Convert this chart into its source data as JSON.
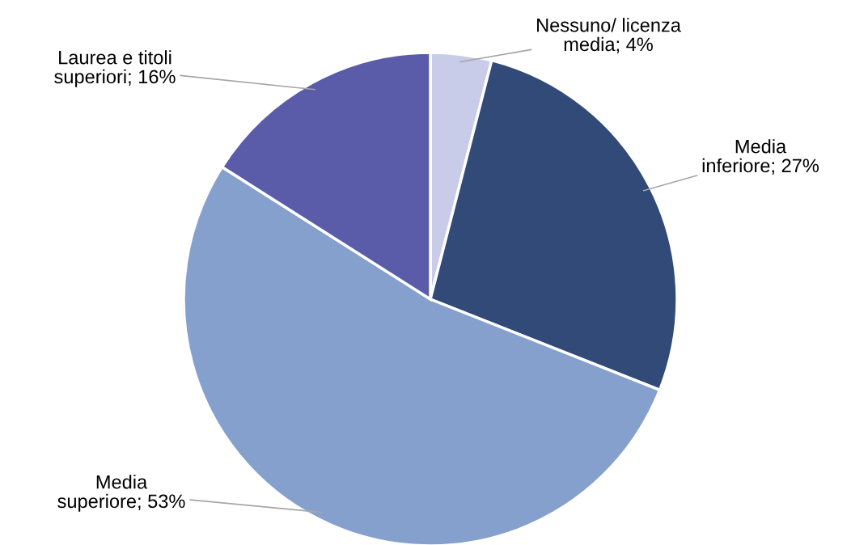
{
  "chart_data": {
    "type": "pie",
    "categories": [
      "Nessuno/ licenza\nmedia",
      "Media\ninferiore",
      "Media\nsuperiore",
      "Laurea e titoli\nsuperiori"
    ],
    "values": [
      4,
      27,
      53,
      16
    ],
    "value_labels": [
      "4%",
      "27%",
      "53%",
      "16%"
    ],
    "colors": [
      "#c8cce9",
      "#324a77",
      "#86a0ce",
      "#5a5ca9"
    ],
    "legend": false
  }
}
